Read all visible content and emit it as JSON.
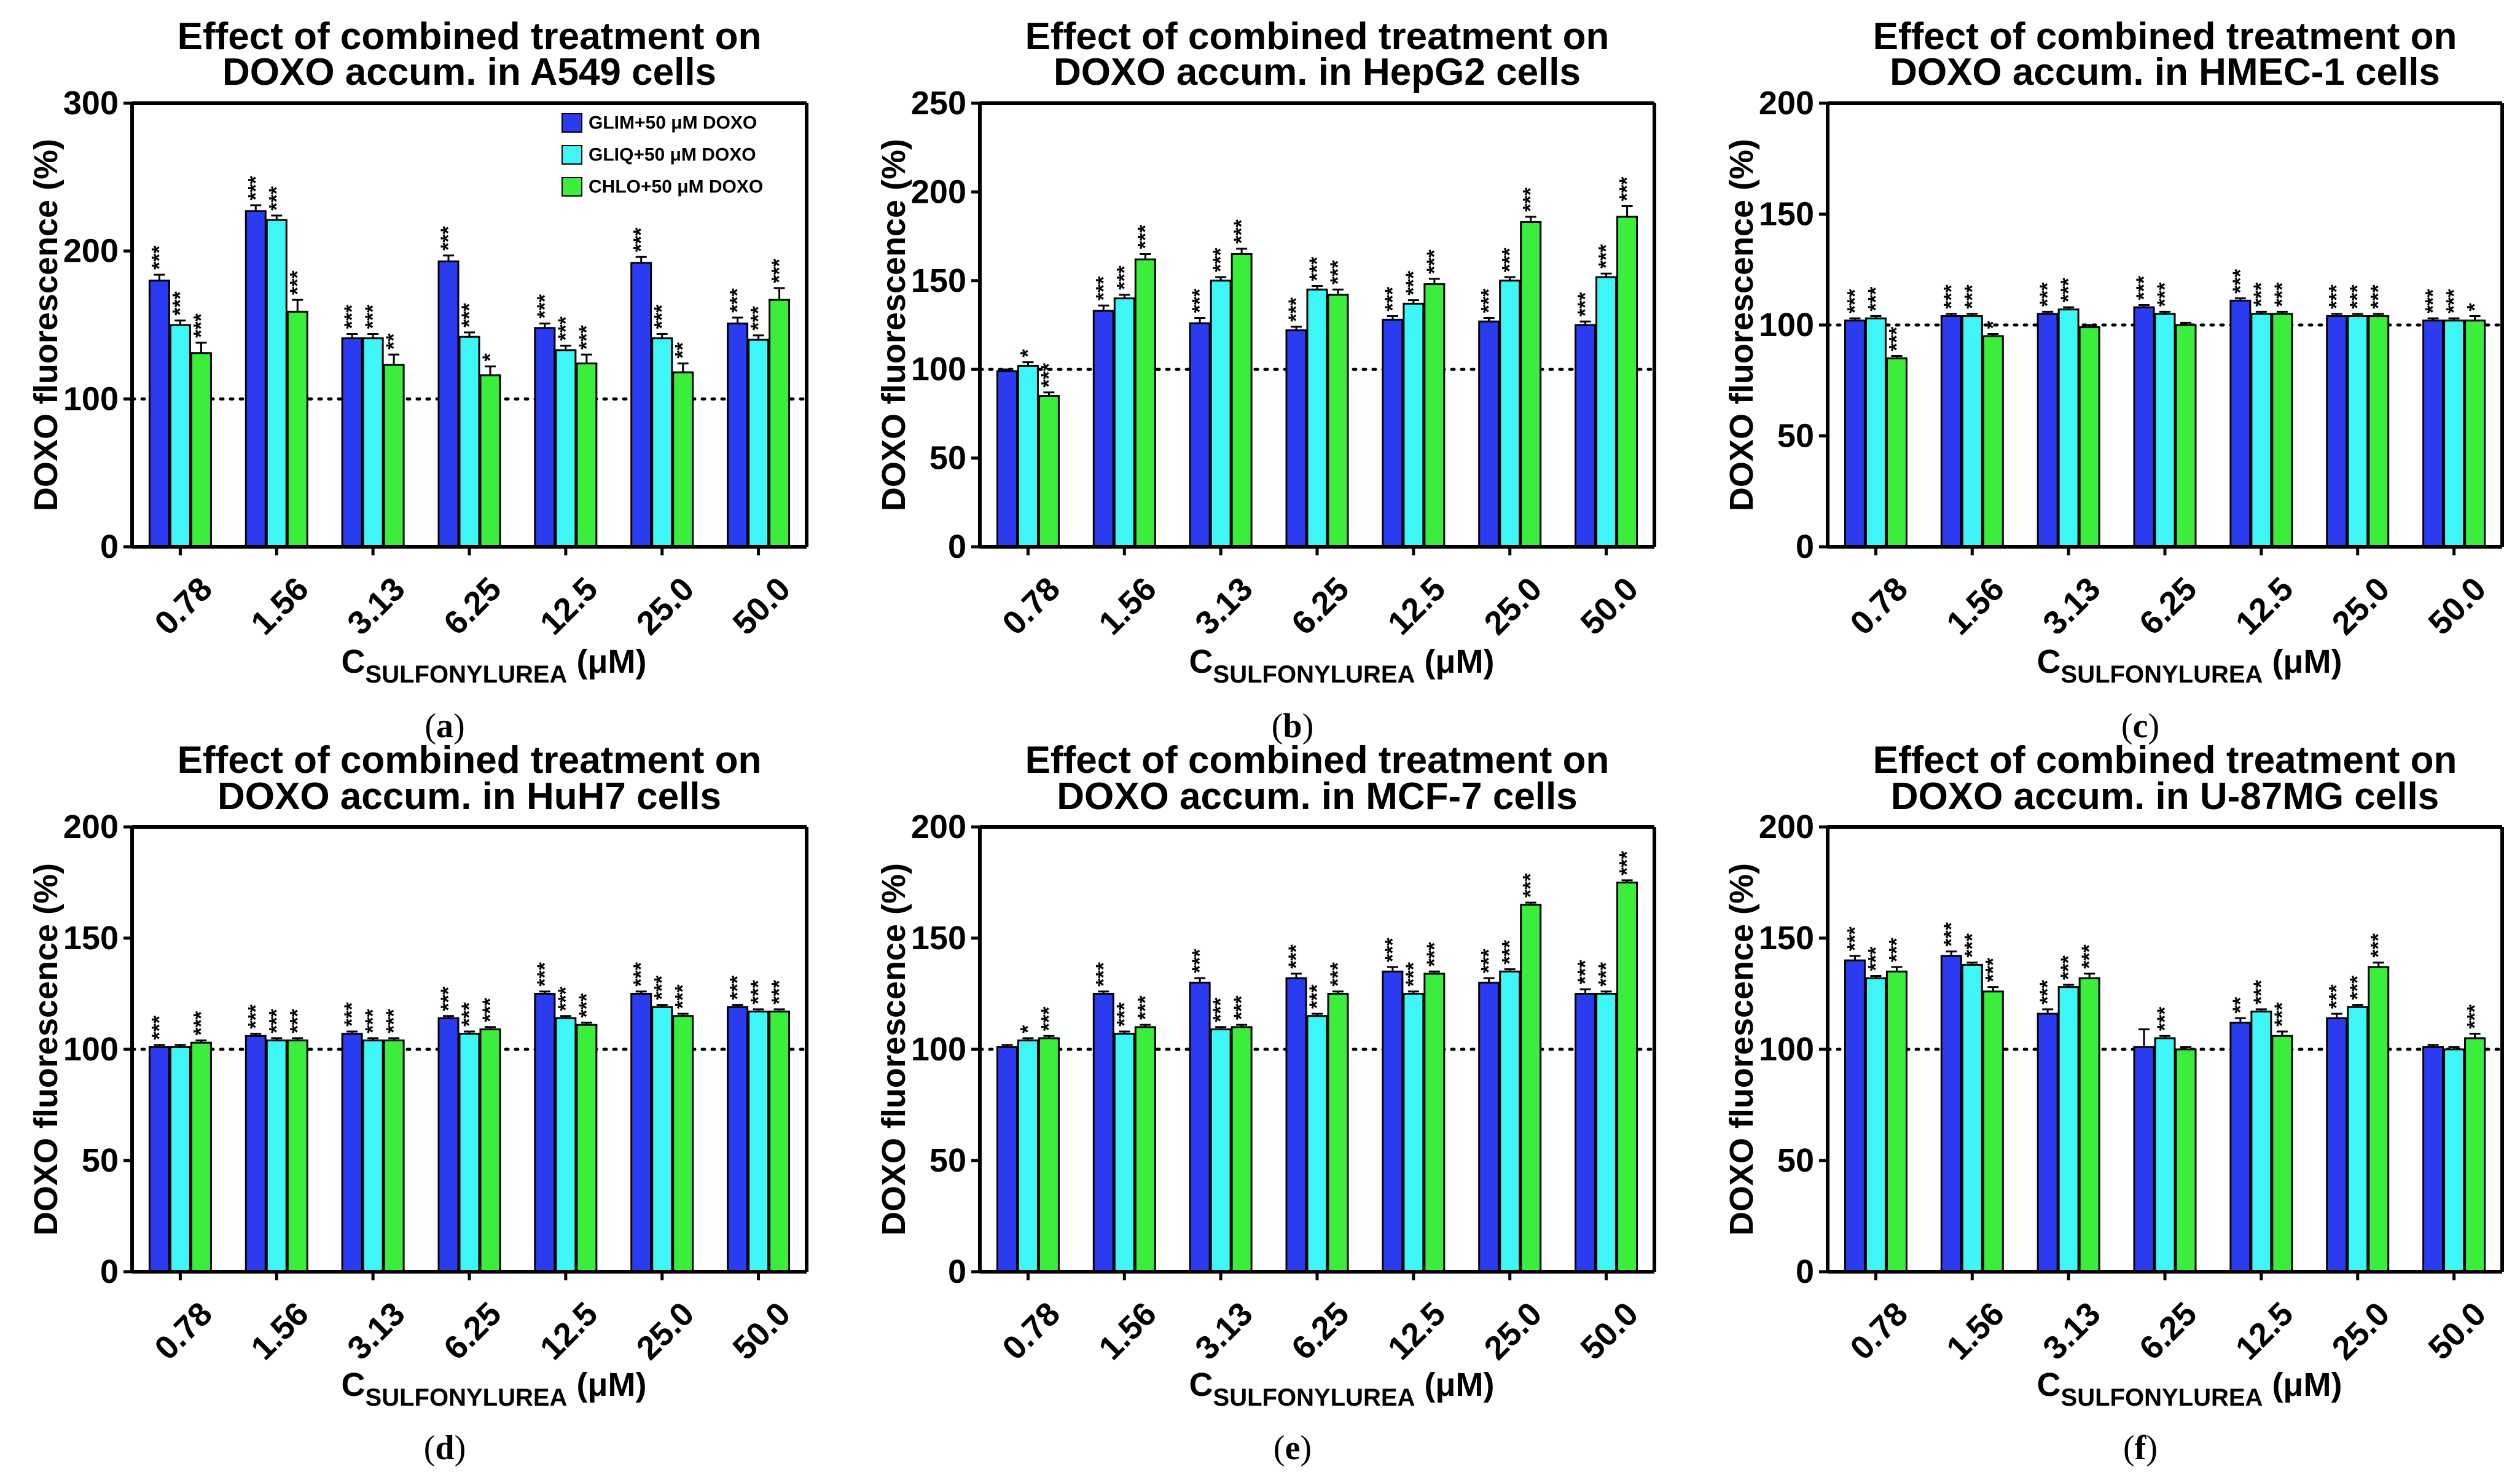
{
  "colors": {
    "glim": "#2b3cf0",
    "gliq": "#3ff6f6",
    "chlo": "#3cee3c",
    "axis": "#000000"
  },
  "legend": [
    {
      "label": "GLIM+50 μM DOXO",
      "color": "#2b3cf0"
    },
    {
      "label": "GLIQ+50 μM DOXO",
      "color": "#3ff6f6"
    },
    {
      "label": "CHLO+50 μM DOXO",
      "color": "#3cee3c"
    }
  ],
  "chart_data": [
    {
      "type": "bar",
      "panel_label": "a",
      "title_line1": "Effect of combined treatment on",
      "title_line2": "DOXO accum. in A549 cells",
      "ylabel": "DOXO fluorescence (%)",
      "xlabel_main": "C",
      "xlabel_sub": "SULFONYLUREA",
      "xlabel_unit": " (μM)",
      "ylim": [
        0,
        300
      ],
      "yticks": [
        0,
        100,
        200,
        300
      ],
      "reference_line": 100,
      "categories": [
        "0.78",
        "1.56",
        "3.13",
        "6.25",
        "12.5",
        "25.0",
        "50.0"
      ],
      "series": [
        {
          "name": "GLIM+50 μM DOXO",
          "values": [
            180,
            227,
            141,
            193,
            148,
            192,
            151
          ],
          "errors": [
            4,
            4,
            3,
            4,
            3,
            4,
            4
          ],
          "sig": [
            "***",
            "***",
            "***",
            "***",
            "***",
            "***",
            "***"
          ]
        },
        {
          "name": "GLIQ+50 μM DOXO",
          "values": [
            150,
            221,
            141,
            142,
            133,
            141,
            140
          ],
          "errors": [
            3,
            3,
            3,
            3,
            3,
            3,
            3
          ],
          "sig": [
            "***",
            "***",
            "***",
            "***",
            "***",
            "***",
            "***"
          ]
        },
        {
          "name": "CHLO+50 μM DOXO",
          "values": [
            131,
            159,
            123,
            116,
            124,
            118,
            167
          ],
          "errors": [
            7,
            8,
            7,
            6,
            6,
            6,
            8
          ],
          "sig": [
            "***",
            "***",
            "**",
            "*",
            "***",
            "**",
            "***"
          ]
        }
      ]
    },
    {
      "type": "bar",
      "panel_label": "b",
      "title_line1": "Effect of combined treatment on",
      "title_line2": "DOXO accum. in HepG2 cells",
      "ylabel": "DOXO fluorescence (%)",
      "xlabel_main": "C",
      "xlabel_sub": "SULFONYLUREA",
      "xlabel_unit": " (μM)",
      "ylim": [
        0,
        250
      ],
      "yticks": [
        0,
        50,
        100,
        150,
        200,
        250
      ],
      "reference_line": 100,
      "categories": [
        "0.78",
        "1.56",
        "3.13",
        "6.25",
        "12.5",
        "25.0",
        "50.0"
      ],
      "series": [
        {
          "name": "GLIM+50 μM DOXO",
          "values": [
            99,
            133,
            126,
            122,
            128,
            127,
            125
          ],
          "errors": [
            1,
            3,
            3,
            2,
            2,
            2,
            2
          ],
          "sig": [
            "",
            "***",
            "***",
            "***",
            "***",
            "***",
            "***"
          ]
        },
        {
          "name": "GLIQ+50 μM DOXO",
          "values": [
            102,
            140,
            150,
            145,
            137,
            150,
            152
          ],
          "errors": [
            2,
            2,
            2,
            2,
            2,
            2,
            2
          ],
          "sig": [
            "*",
            "***",
            "***",
            "***",
            "***",
            "***",
            "***"
          ]
        },
        {
          "name": "CHLO+50 μM DOXO",
          "values": [
            85,
            162,
            165,
            142,
            148,
            183,
            186
          ],
          "errors": [
            2,
            3,
            3,
            3,
            3,
            3,
            6
          ],
          "sig": [
            "***",
            "***",
            "***",
            "***",
            "***",
            "***",
            "***"
          ]
        }
      ]
    },
    {
      "type": "bar",
      "panel_label": "c",
      "title_line1": "Effect of combined treatment on",
      "title_line2": "DOXO accum. in HMEC-1 cells",
      "ylabel": "DOXO fluorescence (%)",
      "xlabel_main": "C",
      "xlabel_sub": "SULFONYLUREA",
      "xlabel_unit": " (μM)",
      "ylim": [
        0,
        200
      ],
      "yticks": [
        0,
        50,
        100,
        150,
        200
      ],
      "reference_line": 100,
      "categories": [
        "0.78",
        "1.56",
        "3.13",
        "6.25",
        "12.5",
        "25.0",
        "50.0"
      ],
      "series": [
        {
          "name": "GLIM+50 μM DOXO",
          "values": [
            102,
            104,
            105,
            108,
            111,
            104,
            102
          ],
          "errors": [
            1,
            1,
            1,
            1,
            1,
            1,
            1
          ],
          "sig": [
            "***",
            "***",
            "***",
            "***",
            "***",
            "***",
            "***"
          ]
        },
        {
          "name": "GLIQ+50 μM DOXO",
          "values": [
            103,
            104,
            107,
            105,
            105,
            104,
            102
          ],
          "errors": [
            1,
            1,
            1,
            1,
            1,
            1,
            1
          ],
          "sig": [
            "***",
            "***",
            "***",
            "***",
            "***",
            "***",
            "***"
          ]
        },
        {
          "name": "CHLO+50 μM DOXO",
          "values": [
            85,
            95,
            99,
            100,
            105,
            104,
            102
          ],
          "errors": [
            1,
            1,
            1,
            1,
            1,
            1,
            2
          ],
          "sig": [
            "***",
            "*",
            "",
            "",
            "***",
            "***",
            "*"
          ]
        }
      ]
    },
    {
      "type": "bar",
      "panel_label": "d",
      "title_line1": "Effect of combined treatment on",
      "title_line2": "DOXO accum. in HuH7 cells",
      "ylabel": "DOXO fluorescence (%)",
      "xlabel_main": "C",
      "xlabel_sub": "SULFONYLUREA",
      "xlabel_unit": " (μM)",
      "ylim": [
        0,
        200
      ],
      "yticks": [
        0,
        50,
        100,
        150,
        200
      ],
      "reference_line": 100,
      "categories": [
        "0.78",
        "1.56",
        "3.13",
        "6.25",
        "12.5",
        "25.0",
        "50.0"
      ],
      "series": [
        {
          "name": "GLIM+50 μM DOXO",
          "values": [
            101,
            106,
            107,
            114,
            125,
            125,
            119
          ],
          "errors": [
            1,
            1,
            1,
            1,
            1,
            1,
            1
          ],
          "sig": [
            "***",
            "***",
            "***",
            "***",
            "***",
            "***",
            "***"
          ]
        },
        {
          "name": "GLIQ+50 μM DOXO",
          "values": [
            101,
            104,
            104,
            107,
            114,
            119,
            117
          ],
          "errors": [
            1,
            1,
            1,
            1,
            1,
            1,
            1
          ],
          "sig": [
            "",
            "***",
            "***",
            "***",
            "***",
            "***",
            "***"
          ]
        },
        {
          "name": "CHLO+50 μM DOXO",
          "values": [
            103,
            104,
            104,
            109,
            111,
            115,
            117
          ],
          "errors": [
            1,
            1,
            1,
            1,
            1,
            1,
            1
          ],
          "sig": [
            "***",
            "***",
            "***",
            "***",
            "***",
            "***",
            "***"
          ]
        }
      ]
    },
    {
      "type": "bar",
      "panel_label": "e",
      "title_line1": "Effect of combined treatment on",
      "title_line2": "DOXO accum. in MCF-7 cells",
      "ylabel": "DOXO fluorescence (%)",
      "xlabel_main": "C",
      "xlabel_sub": "SULFONYLUREA",
      "xlabel_unit": " (μM)",
      "ylim": [
        0,
        200
      ],
      "yticks": [
        0,
        50,
        100,
        150,
        200
      ],
      "reference_line": 100,
      "categories": [
        "0.78",
        "1.56",
        "3.13",
        "6.25",
        "12.5",
        "25.0",
        "50.0"
      ],
      "series": [
        {
          "name": "GLIM+50 μM DOXO",
          "values": [
            101,
            125,
            130,
            132,
            135,
            130,
            125
          ],
          "errors": [
            1,
            1,
            2,
            2,
            2,
            2,
            2
          ],
          "sig": [
            "",
            "***",
            "***",
            "***",
            "***",
            "***",
            "***"
          ]
        },
        {
          "name": "GLIQ+50 μM DOXO",
          "values": [
            104,
            107,
            109,
            115,
            125,
            135,
            125
          ],
          "errors": [
            1,
            1,
            1,
            1,
            1,
            1,
            1
          ],
          "sig": [
            "*",
            "***",
            "***",
            "***",
            "***",
            "***",
            "***"
          ]
        },
        {
          "name": "CHLO+50 μM DOXO",
          "values": [
            105,
            110,
            110,
            125,
            134,
            165,
            175
          ],
          "errors": [
            1,
            1,
            1,
            1,
            1,
            1,
            1
          ],
          "sig": [
            "***",
            "***",
            "***",
            "***",
            "***",
            "***",
            "***"
          ]
        }
      ]
    },
    {
      "type": "bar",
      "panel_label": "f",
      "title_line1": "Effect of combined treatment on",
      "title_line2": "DOXO accum. in U-87MG cells",
      "ylabel": "DOXO fluorescence (%)",
      "xlabel_main": "C",
      "xlabel_sub": "SULFONYLUREA",
      "xlabel_unit": " (μM)",
      "ylim": [
        0,
        200
      ],
      "yticks": [
        0,
        50,
        100,
        150,
        200
      ],
      "reference_line": 100,
      "categories": [
        "0.78",
        "1.56",
        "3.13",
        "6.25",
        "12.5",
        "25.0",
        "50.0"
      ],
      "series": [
        {
          "name": "GLIM+50 μM DOXO",
          "values": [
            140,
            142,
            116,
            101,
            112,
            114,
            101
          ],
          "errors": [
            2,
            2,
            2,
            8,
            2,
            2,
            1
          ],
          "sig": [
            "***",
            "***",
            "***",
            "",
            "**",
            "***",
            ""
          ]
        },
        {
          "name": "GLIQ+50 μM DOXO",
          "values": [
            132,
            138,
            128,
            105,
            117,
            119,
            100
          ],
          "errors": [
            1,
            1,
            1,
            1,
            1,
            1,
            1
          ],
          "sig": [
            "***",
            "***",
            "***",
            "***",
            "***",
            "***",
            ""
          ]
        },
        {
          "name": "CHLO+50 μM DOXO",
          "values": [
            135,
            126,
            132,
            100,
            106,
            137,
            105
          ],
          "errors": [
            2,
            2,
            2,
            1,
            2,
            2,
            2
          ],
          "sig": [
            "***",
            "***",
            "***",
            "",
            "***",
            "***",
            "***"
          ]
        }
      ]
    }
  ]
}
